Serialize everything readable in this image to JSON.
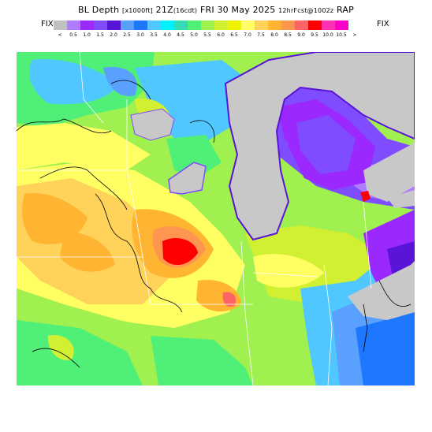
{
  "header": {
    "title_main": "BL Depth",
    "title_units": "[x1000ft]",
    "title_time": "21Z",
    "title_local": "(16cdt)",
    "title_date": "FRI 30 May 2025",
    "title_fcst": "12hrFcst@1002z",
    "title_model": "RAP"
  },
  "legend": {
    "left_label": "FIX",
    "right_label": "FIX",
    "swatches": [
      "#c0c0c0",
      "#b07cff",
      "#9a28ff",
      "#7f4cff",
      "#5a14d8",
      "#5aa0ff",
      "#1e78ff",
      "#50c8ff",
      "#00f0ff",
      "#32dcb4",
      "#50f078",
      "#a0f050",
      "#d2f032",
      "#f0f000",
      "#ffff64",
      "#ffd25a",
      "#ffb432",
      "#ff9650",
      "#ff6464",
      "#ff0000",
      "#ff32b4",
      "#ff00c8"
    ],
    "ticks": [
      "<",
      "0.5",
      "1.0",
      "1.5",
      "2.0",
      "2.5",
      "3.0",
      "3.5",
      "4.0",
      "4.5",
      "5.0",
      "5.5",
      "6.0",
      "6.5",
      "7.0",
      "7.5",
      "8.0",
      "8.5",
      "9.0",
      "9.5",
      "10.0",
      "10.5",
      ">"
    ]
  },
  "map": {
    "region": "Upper Midwest / Great Lakes",
    "lake_color": "#c8c8c8",
    "border_color": "#ffffff",
    "coast_color": "#000000"
  }
}
